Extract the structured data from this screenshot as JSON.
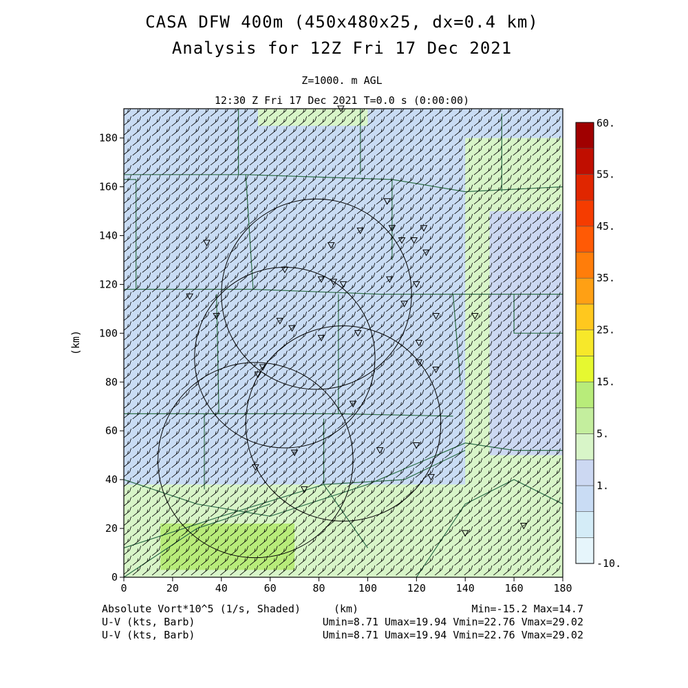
{
  "title_line1": "CASA DFW 400m (450x480x25, dx=0.4 km)",
  "title_line2": "Analysis for 12Z Fri 17 Dec 2021",
  "level_label": "Z=1000. m AGL",
  "time_label": "12:30 Z Fri 17 Dec 2021   T=0.0 s (0:00:00)",
  "footer": {
    "field1": "Absolute Vort*10^5 (1/s, Shaded)",
    "field2": "U-V (kts, Barb)",
    "field3": "U-V (kts, Barb)",
    "stats1": "Min=-15.2 Max=14.7",
    "stats2": "Umin=8.71 Umax=19.94 Vmin=22.76 Vmax=29.02",
    "stats3": "Umin=8.71 Umax=19.94 Vmin=22.76 Vmax=29.02"
  },
  "colors": {
    "frame": "#000000",
    "county_lines": "#2f6f4a",
    "radar_rings": "#000000",
    "barbs": "#000000"
  },
  "chart_data": {
    "type": "heatmap",
    "xlabel": "(km)",
    "ylabel": "(km)",
    "xlim": [
      0,
      180
    ],
    "ylim": [
      0,
      192
    ],
    "x_ticks": [
      0,
      20,
      40,
      60,
      80,
      100,
      120,
      140,
      160,
      180
    ],
    "y_ticks": [
      0,
      20,
      40,
      60,
      80,
      100,
      120,
      140,
      160,
      180
    ],
    "colorbar": {
      "levels": [
        -10,
        -5,
        0,
        1,
        3,
        5,
        10,
        15,
        20,
        25,
        30,
        35,
        40,
        45,
        50,
        55,
        60
      ],
      "colors": [
        "#e6f5fb",
        "#d4ecf7",
        "#c9dcf4",
        "#ccd8f2",
        "#d8f5c8",
        "#c4ee9e",
        "#b8ec7a",
        "#e6f830",
        "#f7e82a",
        "#ffc81e",
        "#ffa014",
        "#ff7d0a",
        "#ff5a05",
        "#f53c00",
        "#e02600",
        "#c00e00",
        "#a00000"
      ],
      "labels": [
        {
          "value": -10,
          "text": "-10."
        },
        {
          "value": 1,
          "text": "1."
        },
        {
          "value": 5,
          "text": "5."
        },
        {
          "value": 15,
          "text": "15."
        },
        {
          "value": 25,
          "text": "25."
        },
        {
          "value": 35,
          "text": "35."
        },
        {
          "value": 45,
          "text": "45."
        },
        {
          "value": 55,
          "text": "55."
        },
        {
          "value": 60,
          "text": "60."
        }
      ]
    },
    "field_regions": [
      {
        "value": 0,
        "x0": 0,
        "x1": 180,
        "y0": 0,
        "y1": 192
      },
      {
        "value": 3,
        "x0": 0,
        "x1": 180,
        "y0": 0,
        "y1": 38
      },
      {
        "value": 3,
        "x0": 140,
        "x1": 180,
        "y0": 38,
        "y1": 180
      },
      {
        "value": 1,
        "x0": 150,
        "x1": 180,
        "y0": 50,
        "y1": 150
      },
      {
        "value": 3,
        "x0": 55,
        "x1": 100,
        "y0": 185,
        "y1": 192
      },
      {
        "value": 10,
        "x0": 15,
        "x1": 70,
        "y0": 3,
        "y1": 22
      }
    ],
    "wind": {
      "u_range_kts": [
        8.71,
        19.94
      ],
      "v_range_kts": [
        22.76,
        29.02
      ],
      "barb_spacing_km": 4
    },
    "radar_rings": [
      {
        "center": [
          79,
          116
        ],
        "radius_km": 39
      },
      {
        "center": [
          66,
          90
        ],
        "radius_km": 37
      },
      {
        "center": [
          90,
          63
        ],
        "radius_km": 40
      },
      {
        "center": [
          54,
          48
        ],
        "radius_km": 40
      }
    ],
    "station_markers": [
      [
        89,
        192
      ],
      [
        108,
        154
      ],
      [
        110,
        143
      ],
      [
        123,
        143
      ],
      [
        97,
        142
      ],
      [
        114,
        138
      ],
      [
        119,
        138
      ],
      [
        124,
        133
      ],
      [
        85,
        136
      ],
      [
        34,
        137
      ],
      [
        66,
        126
      ],
      [
        109,
        122
      ],
      [
        81,
        122
      ],
      [
        86,
        121
      ],
      [
        90,
        120
      ],
      [
        120,
        120
      ],
      [
        27,
        115
      ],
      [
        38,
        107
      ],
      [
        64,
        105
      ],
      [
        128,
        107
      ],
      [
        144,
        107
      ],
      [
        115,
        112
      ],
      [
        69,
        102
      ],
      [
        81,
        98
      ],
      [
        96,
        100
      ],
      [
        121,
        96
      ],
      [
        57,
        86
      ],
      [
        121,
        88
      ],
      [
        128,
        85
      ],
      [
        55,
        83
      ],
      [
        94,
        71
      ],
      [
        120,
        54
      ],
      [
        70,
        51
      ],
      [
        105,
        52
      ],
      [
        54,
        45
      ],
      [
        126,
        41
      ],
      [
        74,
        36
      ],
      [
        140,
        18
      ],
      [
        164,
        21
      ]
    ],
    "county_lines": [
      [
        [
          0,
          165
        ],
        [
          50,
          165
        ],
        [
          110,
          163
        ],
        [
          140,
          158
        ],
        [
          180,
          160
        ]
      ],
      [
        [
          50,
          165
        ],
        [
          53,
          118
        ]
      ],
      [
        [
          0,
          118
        ],
        [
          53,
          118
        ],
        [
          105,
          116
        ],
        [
          135,
          116
        ]
      ],
      [
        [
          135,
          116
        ],
        [
          138,
          80
        ]
      ],
      [
        [
          0,
          163
        ],
        [
          5,
          163
        ],
        [
          5,
          118
        ]
      ],
      [
        [
          38,
          116
        ],
        [
          39,
          67
        ]
      ],
      [
        [
          88,
          116
        ],
        [
          88,
          67
        ]
      ],
      [
        [
          0,
          67
        ],
        [
          38,
          67
        ],
        [
          88,
          67
        ],
        [
          135,
          66
        ]
      ],
      [
        [
          33,
          67
        ],
        [
          33,
          36
        ]
      ],
      [
        [
          82,
          65
        ],
        [
          82,
          38
        ],
        [
          100,
          12
        ]
      ],
      [
        [
          110,
          130
        ],
        [
          110,
          163
        ]
      ],
      [
        [
          135,
          116
        ],
        [
          180,
          116
        ]
      ],
      [
        [
          155,
          190
        ],
        [
          155,
          158
        ]
      ],
      [
        [
          0,
          40
        ],
        [
          30,
          30
        ],
        [
          60,
          25
        ],
        [
          100,
          38
        ],
        [
          140,
          55
        ],
        [
          160,
          52
        ],
        [
          180,
          52
        ]
      ],
      [
        [
          160,
          116
        ],
        [
          160,
          100
        ],
        [
          180,
          100
        ]
      ],
      [
        [
          47,
          192
        ],
        [
          47,
          165
        ]
      ],
      [
        [
          97,
          192
        ],
        [
          97,
          165
        ]
      ],
      [
        [
          0,
          12
        ],
        [
          40,
          25
        ],
        [
          82,
          38
        ],
        [
          115,
          40
        ],
        [
          140,
          52
        ]
      ],
      [
        [
          120,
          0
        ],
        [
          140,
          30
        ],
        [
          160,
          40
        ],
        [
          180,
          30
        ]
      ],
      [
        [
          0,
          0
        ],
        [
          30,
          20
        ],
        [
          60,
          30
        ]
      ]
    ]
  }
}
